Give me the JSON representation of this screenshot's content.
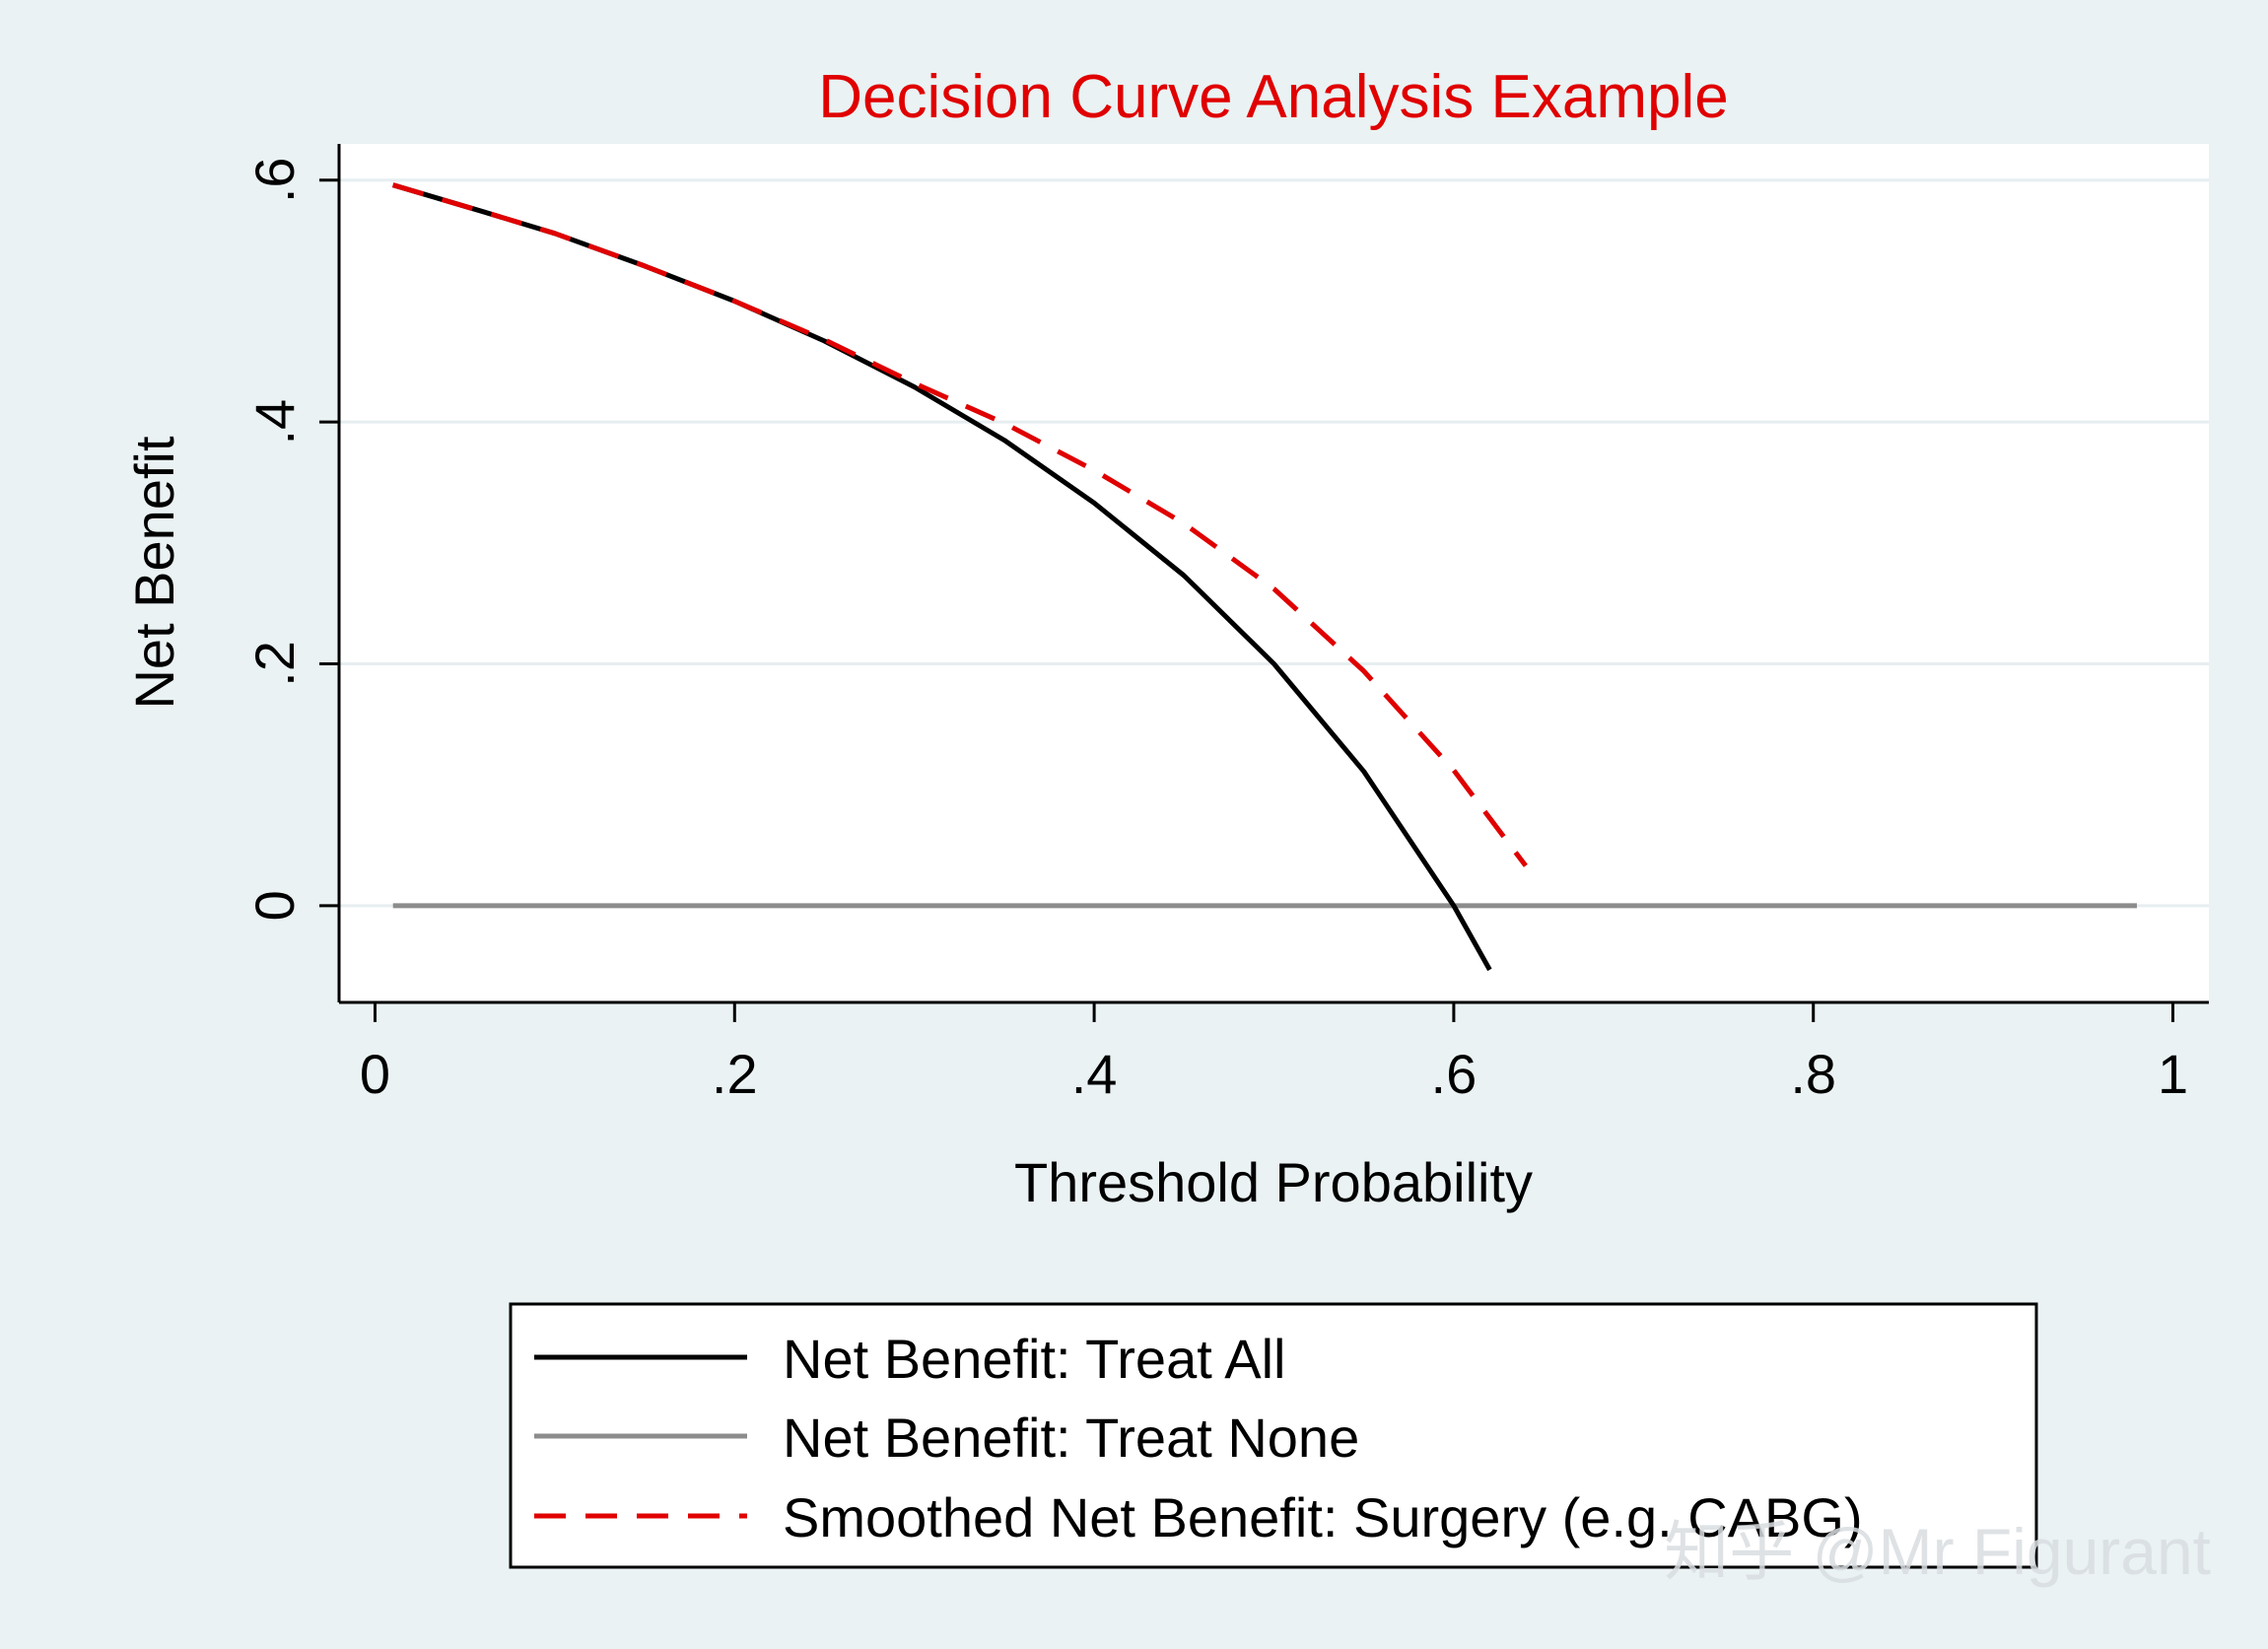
{
  "chart_data": {
    "type": "line",
    "title": "Decision Curve Analysis Example",
    "xlabel": "Threshold Probability",
    "ylabel": "Net Benefit",
    "xlim": [
      -0.02,
      1.02
    ],
    "ylim": [
      -0.08,
      0.63
    ],
    "xticks": [
      0,
      0.2,
      0.4,
      0.6,
      0.8,
      1
    ],
    "xtick_labels": [
      "0",
      ".2",
      ".4",
      ".6",
      ".8",
      "1"
    ],
    "yticks": [
      0,
      0.2,
      0.4,
      0.6
    ],
    "ytick_labels": [
      "0",
      ".2",
      ".4",
      ".6"
    ],
    "grid": true,
    "legend_position": "bottom",
    "series": [
      {
        "name": "Net Benefit: Treat All",
        "color": "#000000",
        "style": "solid",
        "x": [
          0.01,
          0.06,
          0.1,
          0.15,
          0.2,
          0.25,
          0.3,
          0.35,
          0.4,
          0.45,
          0.5,
          0.55,
          0.6,
          0.62
        ],
        "y": [
          0.596,
          0.574,
          0.556,
          0.529,
          0.5,
          0.467,
          0.429,
          0.385,
          0.333,
          0.273,
          0.2,
          0.111,
          0.0,
          -0.053
        ]
      },
      {
        "name": "Net Benefit: Treat None",
        "color": "#8c8c8c",
        "style": "solid",
        "x": [
          0.01,
          0.98
        ],
        "y": [
          0,
          0
        ]
      },
      {
        "name": "Smoothed Net Benefit: Surgery (e.g. CABG)",
        "color": "#e00000",
        "style": "dashed",
        "x": [
          0.01,
          0.06,
          0.1,
          0.15,
          0.2,
          0.25,
          0.3,
          0.35,
          0.4,
          0.45,
          0.5,
          0.55,
          0.6,
          0.64
        ],
        "y": [
          0.596,
          0.574,
          0.556,
          0.529,
          0.5,
          0.468,
          0.432,
          0.399,
          0.36,
          0.316,
          0.262,
          0.194,
          0.112,
          0.033
        ]
      }
    ],
    "watermark": "知乎 @Mr Figurant"
  }
}
